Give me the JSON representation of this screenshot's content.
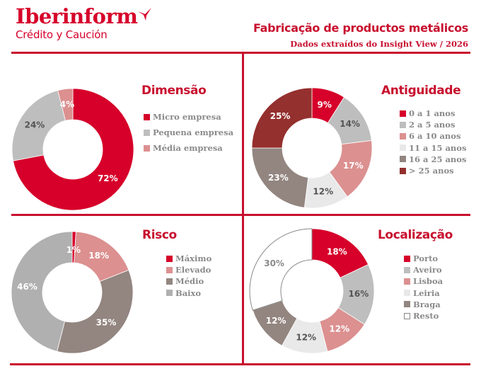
{
  "header": {
    "logo_main": "Iberinform",
    "logo_sub": "Crédito y Caución",
    "title": "Fabricação de productos metálicos",
    "subtitle": "Dados extraídos do Insight View / 2026"
  },
  "colors": {
    "brand_red": "#c8102e",
    "red": "#d6002a",
    "light_gray": "#bebebe",
    "pink": "#dc9090",
    "very_light_gray": "#e9e9e9",
    "taupe": "#938580",
    "dark_red": "#94302e",
    "white": "#ffffff"
  },
  "chart_data": [
    {
      "type": "pie",
      "title": "Dimensão",
      "categories": [
        "Micro empresa",
        "Pequena empresa",
        "Média empresa"
      ],
      "values": [
        72,
        24,
        4
      ],
      "labels": [
        "72%",
        "24%",
        "4%"
      ],
      "colors": [
        "#d6002a",
        "#bebebe",
        "#dc9090"
      ],
      "label_colors": [
        "#ffffff",
        "#555555",
        "#ffffff"
      ],
      "donut": true,
      "legend": "right"
    },
    {
      "type": "pie",
      "title": "Antiguidade",
      "categories": [
        "0 a 1 anos",
        "2 a 5 anos",
        "6 a 10 anos",
        "11 a 15 anos",
        "16 a 25 anos",
        "> 25 anos"
      ],
      "values": [
        9,
        14,
        17,
        12,
        23,
        25
      ],
      "labels": [
        "9%",
        "14%",
        "17%",
        "12%",
        "23%",
        "25%"
      ],
      "colors": [
        "#d6002a",
        "#bebebe",
        "#dc9090",
        "#e9e9e9",
        "#938580",
        "#94302e"
      ],
      "label_colors": [
        "#ffffff",
        "#555555",
        "#ffffff",
        "#555555",
        "#ffffff",
        "#ffffff"
      ],
      "donut": true,
      "legend": "right"
    },
    {
      "type": "pie",
      "title": "Risco",
      "categories": [
        "Máximo",
        "Elevado",
        "Médio",
        "Baixo"
      ],
      "values": [
        1,
        18,
        35,
        46
      ],
      "labels": [
        "1%",
        "18%",
        "35%",
        "46%"
      ],
      "colors": [
        "#d6002a",
        "#dc9090",
        "#938580",
        "#b0b0b0"
      ],
      "label_colors": [
        "#ffffff",
        "#ffffff",
        "#ffffff",
        "#ffffff"
      ],
      "donut": true,
      "legend": "right"
    },
    {
      "type": "pie",
      "title": "Localização",
      "categories": [
        "Porto",
        "Aveiro",
        "Lisboa",
        "Leiria",
        "Braga",
        "Resto"
      ],
      "values": [
        18,
        16,
        12,
        12,
        12,
        30
      ],
      "labels": [
        "18%",
        "16%",
        "12%",
        "12%",
        "12%",
        "30%"
      ],
      "colors": [
        "#d6002a",
        "#bebebe",
        "#dc9090",
        "#e9e9e9",
        "#938580",
        "#ffffff"
      ],
      "label_colors": [
        "#ffffff",
        "#555555",
        "#ffffff",
        "#555555",
        "#ffffff",
        "#8a8a8a"
      ],
      "donut": true,
      "legend": "right"
    }
  ]
}
